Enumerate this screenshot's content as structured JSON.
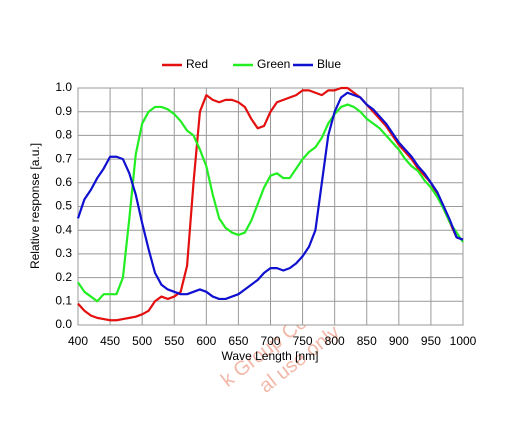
{
  "chart_data": {
    "type": "line",
    "xlabel": "Wave Length [nm]",
    "ylabel": "Relative response [a.u.]",
    "watermark": [
      "k Group Co.,Ltd",
      "al use only"
    ],
    "x": [
      400,
      410,
      420,
      430,
      440,
      450,
      460,
      470,
      480,
      490,
      500,
      510,
      520,
      530,
      540,
      550,
      560,
      570,
      580,
      590,
      600,
      610,
      620,
      630,
      640,
      650,
      660,
      670,
      680,
      690,
      700,
      710,
      720,
      730,
      740,
      750,
      760,
      770,
      780,
      790,
      800,
      810,
      820,
      830,
      840,
      850,
      860,
      870,
      880,
      890,
      900,
      910,
      920,
      930,
      940,
      950,
      960,
      970,
      980,
      990,
      1000
    ],
    "series": [
      {
        "name": "Red",
        "color": "#e41010",
        "values": [
          0.09,
          0.06,
          0.04,
          0.03,
          0.025,
          0.02,
          0.02,
          0.025,
          0.03,
          0.035,
          0.045,
          0.06,
          0.1,
          0.12,
          0.11,
          0.12,
          0.14,
          0.25,
          0.6,
          0.9,
          0.97,
          0.95,
          0.94,
          0.95,
          0.95,
          0.94,
          0.92,
          0.87,
          0.83,
          0.84,
          0.9,
          0.94,
          0.95,
          0.96,
          0.97,
          0.99,
          0.99,
          0.98,
          0.97,
          0.99,
          0.99,
          1.0,
          1.0,
          0.98,
          0.96,
          0.93,
          0.9,
          0.87,
          0.84,
          0.8,
          0.76,
          0.73,
          0.7,
          0.66,
          0.63,
          0.6,
          0.55,
          0.49,
          0.43,
          0.37,
          0.36
        ]
      },
      {
        "name": "Green",
        "color": "#22ee22",
        "values": [
          0.18,
          0.14,
          0.12,
          0.1,
          0.13,
          0.13,
          0.13,
          0.2,
          0.45,
          0.72,
          0.85,
          0.9,
          0.92,
          0.92,
          0.91,
          0.89,
          0.86,
          0.82,
          0.8,
          0.74,
          0.67,
          0.55,
          0.45,
          0.41,
          0.39,
          0.38,
          0.39,
          0.44,
          0.51,
          0.58,
          0.63,
          0.64,
          0.62,
          0.62,
          0.66,
          0.7,
          0.73,
          0.75,
          0.79,
          0.85,
          0.89,
          0.92,
          0.93,
          0.92,
          0.9,
          0.87,
          0.85,
          0.83,
          0.8,
          0.77,
          0.74,
          0.7,
          0.67,
          0.65,
          0.61,
          0.58,
          0.54,
          0.49,
          0.43,
          0.39,
          0.35
        ]
      },
      {
        "name": "Blue",
        "color": "#1010d0",
        "values": [
          0.45,
          0.53,
          0.57,
          0.62,
          0.66,
          0.71,
          0.71,
          0.7,
          0.64,
          0.55,
          0.43,
          0.32,
          0.22,
          0.17,
          0.15,
          0.14,
          0.13,
          0.13,
          0.14,
          0.15,
          0.14,
          0.12,
          0.11,
          0.11,
          0.12,
          0.13,
          0.15,
          0.17,
          0.19,
          0.22,
          0.24,
          0.24,
          0.23,
          0.24,
          0.26,
          0.29,
          0.33,
          0.4,
          0.6,
          0.8,
          0.9,
          0.96,
          0.98,
          0.97,
          0.96,
          0.93,
          0.91,
          0.88,
          0.85,
          0.81,
          0.77,
          0.74,
          0.71,
          0.67,
          0.64,
          0.6,
          0.56,
          0.5,
          0.44,
          0.37,
          0.36
        ]
      }
    ],
    "xlim": [
      400,
      1000
    ],
    "xticks": [
      400,
      450,
      500,
      550,
      600,
      650,
      700,
      750,
      800,
      850,
      900,
      950,
      1000
    ],
    "ylim": [
      0,
      1
    ],
    "yticks": [
      {
        "value": 0,
        "label": "0.0"
      },
      0.1,
      0.2,
      0.3,
      0.4,
      0.5,
      0.6,
      0.7,
      0.8,
      0.9,
      {
        "value": 1,
        "label": "1.0"
      }
    ],
    "grid": true,
    "legend": "top"
  }
}
